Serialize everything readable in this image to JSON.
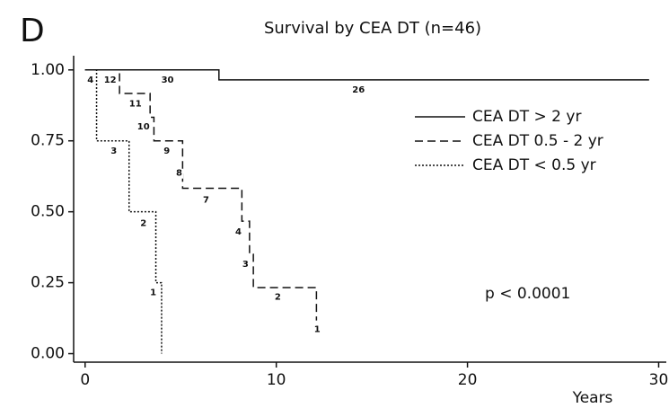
{
  "chart_data": {
    "type": "step",
    "panel_label": "D",
    "title": "Survival by CEA DT (n=46)",
    "x_label": "Years",
    "annotation": "p < 0.0001",
    "xlim": [
      -0.6,
      30.4
    ],
    "xticks": [
      0,
      10,
      20,
      30
    ],
    "ylim": [
      -0.03,
      1.05
    ],
    "yticks": [
      {
        "value": 0,
        "label": "0.00"
      },
      {
        "value": 0.25,
        "label": "0.25"
      },
      {
        "value": 0.5,
        "label": "0.50"
      },
      {
        "value": 0.75,
        "label": "0.75"
      },
      {
        "value": 1,
        "label": "1.00"
      }
    ],
    "legend_position": "upper right",
    "series": [
      {
        "name": "CEA DT > 2 yr",
        "color": "#111111",
        "dash": "solid",
        "x": [
          0,
          7,
          29.5
        ],
        "values": [
          1,
          0.965,
          0.965
        ]
      },
      {
        "name": "CEA DT  0.5 - 2 yr",
        "color": "#111111",
        "dash": "dashed",
        "x": [
          0,
          1.8,
          3.4,
          3.6,
          5.1,
          8.2,
          8.6,
          8.8,
          12.1
        ],
        "values": [
          1,
          0.917,
          0.833,
          0.75,
          0.583,
          0.467,
          0.35,
          0.233,
          0.117
        ]
      },
      {
        "name": "CEA DT < 0.5 yr",
        "color": "#111111",
        "dash": "dotted",
        "x": [
          0,
          0.6,
          2.3,
          3.7,
          4.0
        ],
        "values": [
          1,
          0.75,
          0.5,
          0.25,
          0
        ]
      }
    ],
    "at_risk_labels": [
      {
        "text": "4",
        "x": 0.28,
        "y": 0.965
      },
      {
        "text": "12",
        "x": 1.31,
        "y": 0.965
      },
      {
        "text": "30",
        "x": 4.31,
        "y": 0.965
      },
      {
        "text": "26",
        "x": 14.3,
        "y": 0.93
      },
      {
        "text": "11",
        "x": 2.63,
        "y": 0.88
      },
      {
        "text": "10",
        "x": 3.05,
        "y": 0.8
      },
      {
        "text": "3",
        "x": 1.5,
        "y": 0.715
      },
      {
        "text": "9",
        "x": 4.27,
        "y": 0.715
      },
      {
        "text": "8",
        "x": 4.92,
        "y": 0.636
      },
      {
        "text": "7",
        "x": 6.33,
        "y": 0.541
      },
      {
        "text": "2",
        "x": 3.05,
        "y": 0.459
      },
      {
        "text": "4",
        "x": 8.02,
        "y": 0.43
      },
      {
        "text": "3",
        "x": 8.39,
        "y": 0.316
      },
      {
        "text": "1",
        "x": 3.56,
        "y": 0.215
      },
      {
        "text": "2",
        "x": 10.08,
        "y": 0.2
      },
      {
        "text": "1",
        "x": 12.14,
        "y": 0.085
      }
    ]
  }
}
